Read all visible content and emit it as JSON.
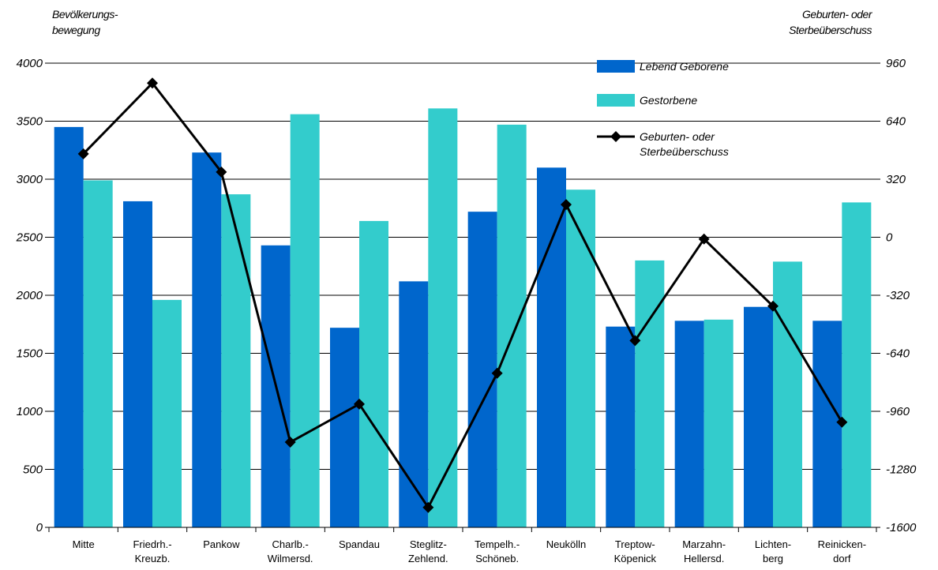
{
  "chart_data": {
    "type": "bar",
    "ylabel_left": "Bevölkerungs-\nbewegung",
    "ylabel_right": "Geburten- oder\nSterbeüberschuss",
    "categories": [
      [
        "Mitte"
      ],
      [
        "Friedrh.-",
        "Kreuzb."
      ],
      [
        "Pankow"
      ],
      [
        "Charlb.-",
        "Wilmersd."
      ],
      [
        "Spandau"
      ],
      [
        "Steglitz-",
        "Zehlend."
      ],
      [
        "Tempelh.-",
        "Schöneb."
      ],
      [
        "Neukölln"
      ],
      [
        "Treptow-",
        "Köpenick"
      ],
      [
        "Marzahn-",
        "Hellersd."
      ],
      [
        "Lichten-",
        "berg"
      ],
      [
        "Reinicken-",
        "dorf"
      ]
    ],
    "ylim_left": [
      0,
      4000
    ],
    "yticks_left": [
      "0",
      "500",
      "1000",
      "1500",
      "2000",
      "2500",
      "3000",
      "3500",
      "4000"
    ],
    "ylim_right": [
      -1600,
      960
    ],
    "yticks_right": [
      "-1600",
      "-1280",
      "-960",
      "-640",
      "-320",
      "0",
      "320",
      "640",
      "960"
    ],
    "grid": true,
    "legend_position": "top-right",
    "series": [
      {
        "name": "Lebend Geborene",
        "kind": "bar",
        "axis": "left",
        "color": "#0066CC",
        "values": [
          3450,
          2810,
          3230,
          2430,
          1720,
          2120,
          2720,
          3100,
          1730,
          1780,
          1900,
          1780
        ]
      },
      {
        "name": "Gestorbene",
        "kind": "bar",
        "axis": "left",
        "color": "#33CCCC",
        "values": [
          2990,
          1960,
          2870,
          3560,
          2640,
          3610,
          3470,
          2910,
          2300,
          1790,
          2290,
          2800
        ]
      },
      {
        "name": "Geburten- oder\nSterbeüberschuss",
        "kind": "line",
        "axis": "right",
        "color": "#000000",
        "marker": "diamond",
        "values": [
          460,
          850,
          360,
          -1130,
          -920,
          -1490,
          -750,
          180,
          -570,
          -10,
          -380,
          -1020
        ]
      }
    ]
  }
}
